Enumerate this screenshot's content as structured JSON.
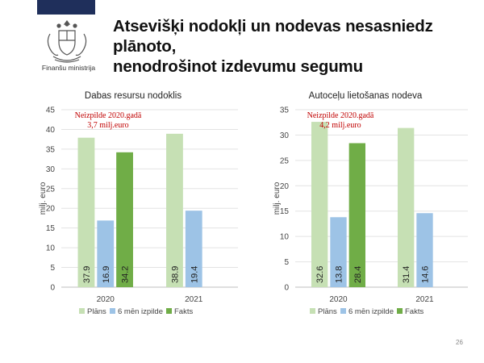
{
  "header": {
    "title_line1": "Atsevišķi nodokļi un nodevas nesasniedz plānoto,",
    "title_line2": "nenodrošinot izdevumu segumu"
  },
  "logo": {
    "caption": "Finanšu ministrija",
    "icon": "coat-of-arms-icon"
  },
  "page_number": "26",
  "colors": {
    "plans": "#c6e0b4",
    "izpilde": "#9dc3e6",
    "fakti": "#70ad47",
    "annotation": "#c00000",
    "band": "#1f2f5b"
  },
  "chart_data": [
    {
      "type": "bar",
      "title": "Dabas resursu nodoklis",
      "ylabel": "milj. euro",
      "xlabel": "",
      "categories": [
        "2020",
        "2021"
      ],
      "ylim": [
        0,
        45
      ],
      "yticks": [
        0,
        5,
        10,
        15,
        20,
        25,
        30,
        35,
        40,
        45
      ],
      "series": [
        {
          "name": "Plāns",
          "values": [
            37.9,
            38.9
          ],
          "labels": [
            "37.9",
            "38.9"
          ]
        },
        {
          "name": "6 mēn izpilde",
          "values": [
            16.9,
            19.4
          ],
          "labels": [
            "16.9",
            "19.4"
          ]
        },
        {
          "name": "Fakts",
          "values": [
            34.2,
            null
          ],
          "labels": [
            "34.2",
            null
          ]
        }
      ],
      "annotation": [
        "Neizpilde 2020.gadā",
        "3,7 milj.euro"
      ],
      "legend": "bottom",
      "grid": true
    },
    {
      "type": "bar",
      "title": "Autoceļu lietošanas nodeva",
      "ylabel": "milj. euro",
      "xlabel": "",
      "categories": [
        "2020",
        "2021"
      ],
      "ylim": [
        0,
        35
      ],
      "yticks": [
        0,
        5,
        10,
        15,
        20,
        25,
        30,
        35
      ],
      "series": [
        {
          "name": "Plāns",
          "values": [
            32.6,
            31.4
          ],
          "labels": [
            "32.6",
            "31.4"
          ]
        },
        {
          "name": "6 mēn izpilde",
          "values": [
            13.8,
            14.6
          ],
          "labels": [
            "13.8",
            "14.6"
          ]
        },
        {
          "name": "Fakts",
          "values": [
            28.4,
            null
          ],
          "labels": [
            "28.4",
            null
          ]
        }
      ],
      "annotation": [
        "Neizpilde 2020.gadā",
        "4,2 milj.euro"
      ],
      "legend": "bottom",
      "grid": true
    }
  ]
}
